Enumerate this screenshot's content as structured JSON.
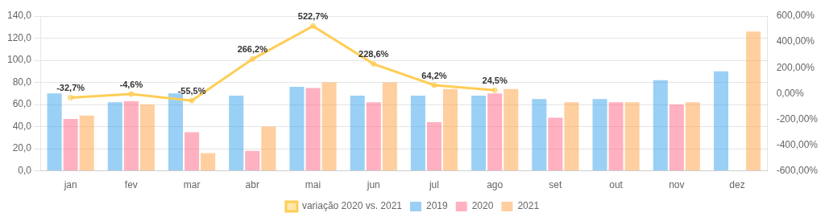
{
  "chart_data": {
    "type": "bar",
    "categories": [
      "jan",
      "fev",
      "mar",
      "abr",
      "mai",
      "jun",
      "jul",
      "ago",
      "set",
      "out",
      "nov",
      "dez"
    ],
    "series": [
      {
        "name": "2019",
        "values": [
          70,
          62,
          70,
          68,
          76,
          68,
          68,
          68,
          65,
          65,
          82,
          90
        ]
      },
      {
        "name": "2020",
        "values": [
          47,
          63,
          35,
          18,
          75,
          62,
          44,
          70,
          48,
          62,
          60,
          0
        ]
      },
      {
        "name": "2021",
        "values": [
          50,
          60,
          16,
          40,
          80,
          80,
          74,
          74,
          62,
          62,
          62,
          126
        ]
      },
      {
        "name": "variação 2020 vs. 2021",
        "type": "line",
        "axis": "y2",
        "data_labels": true,
        "values": [
          -32.7,
          -4.6,
          -55.5,
          266.2,
          522.7,
          228.6,
          64.2,
          24.5,
          null,
          null,
          null,
          null
        ],
        "value_labels": [
          "-32,7%",
          "-4,6%",
          "-55,5%",
          "266,2%",
          "522,7%",
          "228,6%",
          "64,2%",
          "24,5%",
          null,
          null,
          null,
          null
        ]
      }
    ],
    "ylim": [
      0,
      140
    ],
    "yticks": [
      {
        "value": 0,
        "label": "0,0"
      },
      {
        "value": 20,
        "label": "20,0"
      },
      {
        "value": 40,
        "label": "40,0"
      },
      {
        "value": 60,
        "label": "60,0"
      },
      {
        "value": 80,
        "label": "80,0"
      },
      {
        "value": 100,
        "label": "100,0"
      },
      {
        "value": 120,
        "label": "120,0"
      },
      {
        "value": 140,
        "label": "140,0"
      }
    ],
    "y2lim": [
      -600,
      600
    ],
    "y2ticks": [
      {
        "value": 600,
        "label": "600,00%"
      },
      {
        "value": 400,
        "label": "400,00%"
      },
      {
        "value": 200,
        "label": "200,00%"
      },
      {
        "value": 0,
        "label": "0,00%"
      },
      {
        "value": -200,
        "label": "-200,00%"
      },
      {
        "value": -400,
        "label": "-400,00%"
      },
      {
        "value": -600,
        "label": "-600,00%"
      }
    ],
    "grid": true,
    "legend": "bottom"
  }
}
